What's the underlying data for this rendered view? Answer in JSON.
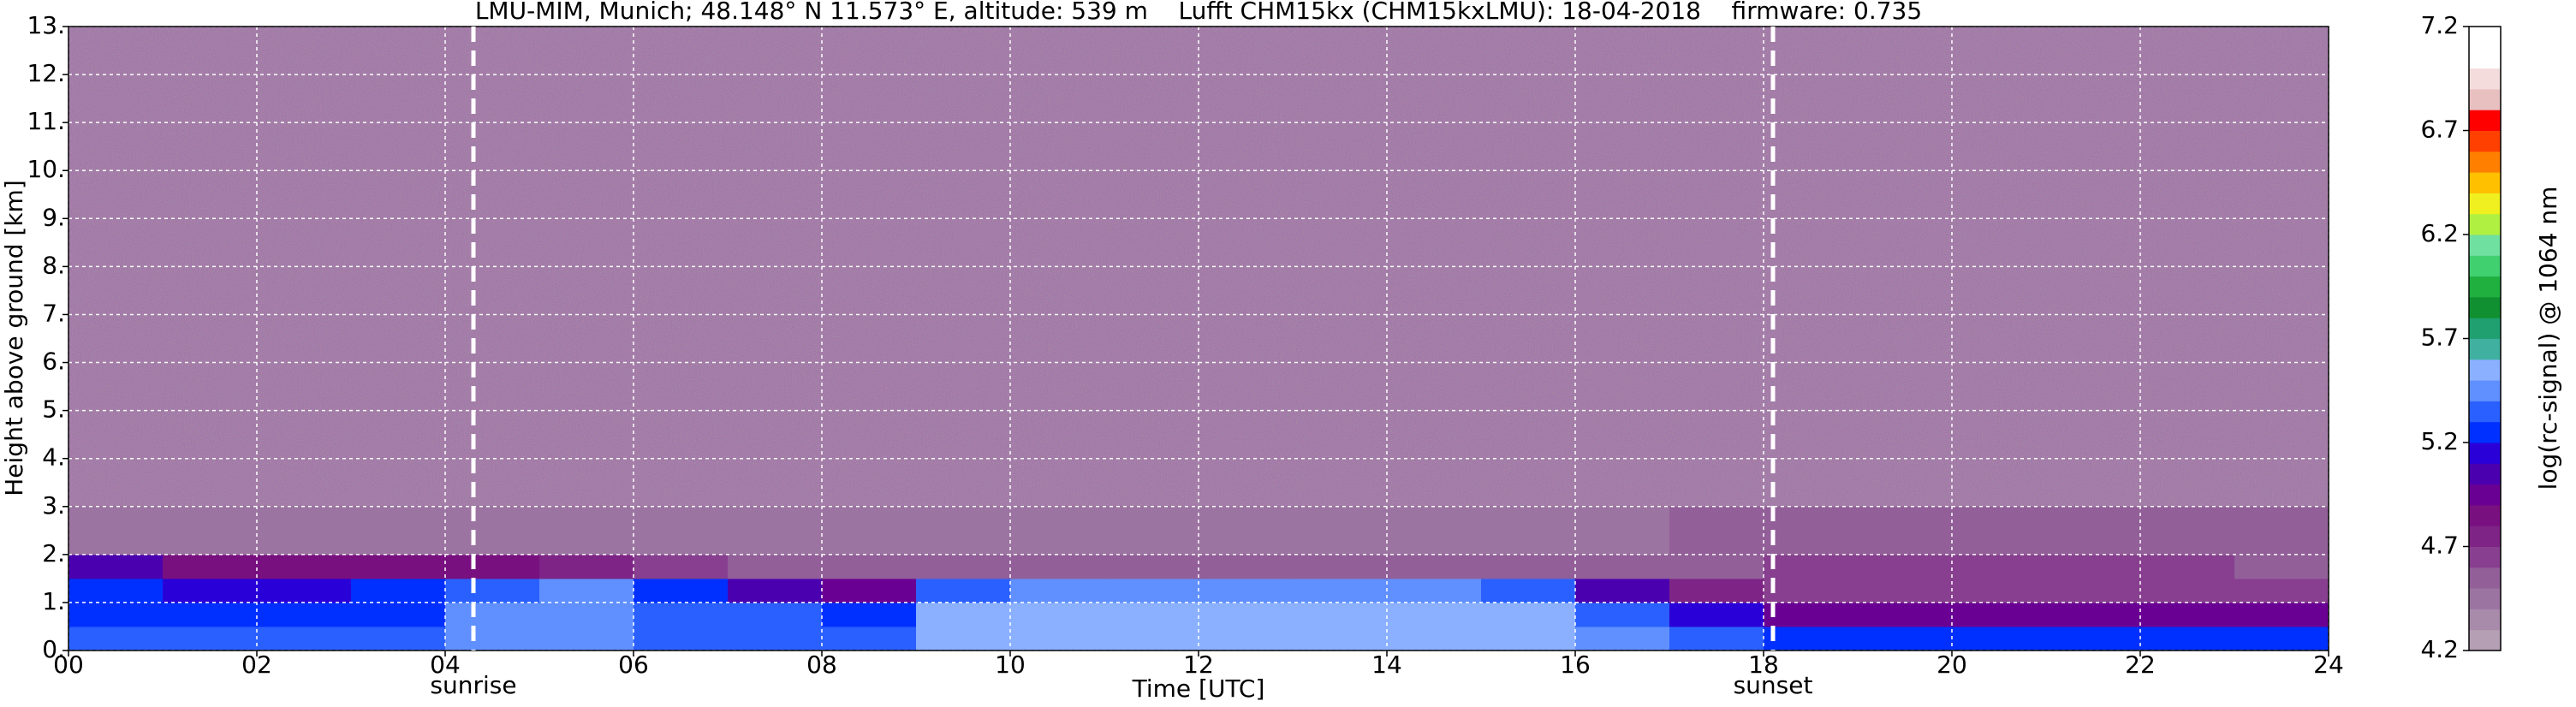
{
  "chart_data": {
    "type": "heatmap",
    "title": "LMU-MIM, Munich; 48.148° N 11.573° E, altitude: 539 m    Lufft CHM15kx (CHM15kxLMU): 18-04-2018    firmware: 0.735",
    "x_label": "Time [UTC]",
    "y_label": "Height above ground [km]",
    "colorbar_label": "log(rc-signal) @ 1064 nm",
    "xlim": [
      0,
      24
    ],
    "xticks": [
      {
        "value": 0,
        "label": "00"
      },
      {
        "value": 2,
        "label": "02"
      },
      {
        "value": 4,
        "label": "04"
      },
      {
        "value": 6,
        "label": "06"
      },
      {
        "value": 8,
        "label": "08"
      },
      {
        "value": 10,
        "label": "10"
      },
      {
        "value": 12,
        "label": "12"
      },
      {
        "value": 14,
        "label": "14"
      },
      {
        "value": 16,
        "label": "16"
      },
      {
        "value": 18,
        "label": "18"
      },
      {
        "value": 20,
        "label": "20"
      },
      {
        "value": 22,
        "label": "22"
      },
      {
        "value": 24,
        "label": "24"
      }
    ],
    "ylim": [
      0,
      13
    ],
    "yticks": [
      {
        "value": 0,
        "label": "0."
      },
      {
        "value": 1,
        "label": "1."
      },
      {
        "value": 2,
        "label": "2."
      },
      {
        "value": 3,
        "label": "3."
      },
      {
        "value": 4,
        "label": "4."
      },
      {
        "value": 5,
        "label": "5."
      },
      {
        "value": 6,
        "label": "6."
      },
      {
        "value": 7,
        "label": "7."
      },
      {
        "value": 8,
        "label": "8."
      },
      {
        "value": 9,
        "label": "9."
      },
      {
        "value": 10,
        "label": "10."
      },
      {
        "value": 11,
        "label": "11."
      },
      {
        "value": 12,
        "label": "12."
      },
      {
        "value": 13,
        "label": "13."
      }
    ],
    "grid": true,
    "clim": [
      4.2,
      7.2
    ],
    "cticks": [
      4.2,
      4.7,
      5.2,
      5.7,
      6.2,
      6.7,
      7.2
    ],
    "colormap": [
      "#b49fb4",
      "#a88aab",
      "#9c74a1",
      "#925f99",
      "#883f8f",
      "#7e2486",
      "#78107f",
      "#6a0093",
      "#4b00b0",
      "#2a00d8",
      "#0030ff",
      "#2a60ff",
      "#6090ff",
      "#8ab0ff",
      "#40b0a0",
      "#20a070",
      "#109030",
      "#20b040",
      "#40d070",
      "#70e0a0",
      "#b0f040",
      "#f0f020",
      "#ffc000",
      "#ff8000",
      "#ff4000",
      "#ff0000",
      "#e8c0c0",
      "#f5dcdc",
      "#ffffff",
      "#ffffff"
    ],
    "annotations": [
      {
        "x": 4.3,
        "label": "sunrise"
      },
      {
        "x": 18.1,
        "label": "sunset"
      }
    ],
    "x_edges": [
      0,
      1,
      2,
      3,
      4,
      5,
      6,
      7,
      8,
      9,
      10,
      11,
      12,
      13,
      14,
      15,
      16,
      17,
      18,
      19,
      20,
      21,
      22,
      23,
      24
    ],
    "y_edges": [
      0,
      0.5,
      1,
      1.5,
      2,
      3,
      5,
      8,
      13
    ],
    "z": [
      [
        5.3,
        5.3,
        5.3,
        5.3,
        5.4,
        5.4,
        5.3,
        5.3,
        5.3,
        5.5,
        5.5,
        5.5,
        5.5,
        5.5,
        5.5,
        5.5,
        5.4,
        5.3,
        5.2,
        5.2,
        5.2,
        5.2,
        5.2,
        5.2
      ],
      [
        5.2,
        5.2,
        5.2,
        5.2,
        5.4,
        5.4,
        5.3,
        5.3,
        5.2,
        5.5,
        5.5,
        5.5,
        5.5,
        5.5,
        5.5,
        5.5,
        5.3,
        5.1,
        4.9,
        4.9,
        4.9,
        4.9,
        4.9,
        4.9
      ],
      [
        5.2,
        5.1,
        5.1,
        5.2,
        5.3,
        5.4,
        5.2,
        5.0,
        4.9,
        5.3,
        5.4,
        5.4,
        5.4,
        5.4,
        5.4,
        5.3,
        5.0,
        4.7,
        4.6,
        4.6,
        4.6,
        4.6,
        4.6,
        4.6
      ],
      [
        5.0,
        4.8,
        4.8,
        4.8,
        4.8,
        4.7,
        4.6,
        4.5,
        4.5,
        4.5,
        4.5,
        4.5,
        4.5,
        4.5,
        4.5,
        4.5,
        4.5,
        4.5,
        4.6,
        4.6,
        4.6,
        4.6,
        4.6,
        4.5
      ],
      [
        4.4,
        4.4,
        4.4,
        4.4,
        4.4,
        4.4,
        4.4,
        4.4,
        4.4,
        4.4,
        4.4,
        4.4,
        4.4,
        4.4,
        4.4,
        4.4,
        4.4,
        4.5,
        4.5,
        4.5,
        4.5,
        4.5,
        4.5,
        4.5
      ],
      [
        4.4,
        4.4,
        4.4,
        4.4,
        4.4,
        4.4,
        4.4,
        4.4,
        4.4,
        4.4,
        4.4,
        4.4,
        4.4,
        4.4,
        4.4,
        4.4,
        4.4,
        4.4,
        4.4,
        4.4,
        4.4,
        4.4,
        4.4,
        4.4
      ],
      [
        4.4,
        4.4,
        4.4,
        4.4,
        4.4,
        4.4,
        4.4,
        4.4,
        4.4,
        4.4,
        4.4,
        4.4,
        4.4,
        4.4,
        4.4,
        4.4,
        4.4,
        4.4,
        4.4,
        4.4,
        4.4,
        4.4,
        4.4,
        4.4
      ],
      [
        4.4,
        4.4,
        4.4,
        4.4,
        4.4,
        4.4,
        4.4,
        4.4,
        4.4,
        4.4,
        4.4,
        4.4,
        4.4,
        4.4,
        4.4,
        4.4,
        4.4,
        4.4,
        4.4,
        4.4,
        4.4,
        4.4,
        4.4,
        4.4
      ]
    ]
  }
}
